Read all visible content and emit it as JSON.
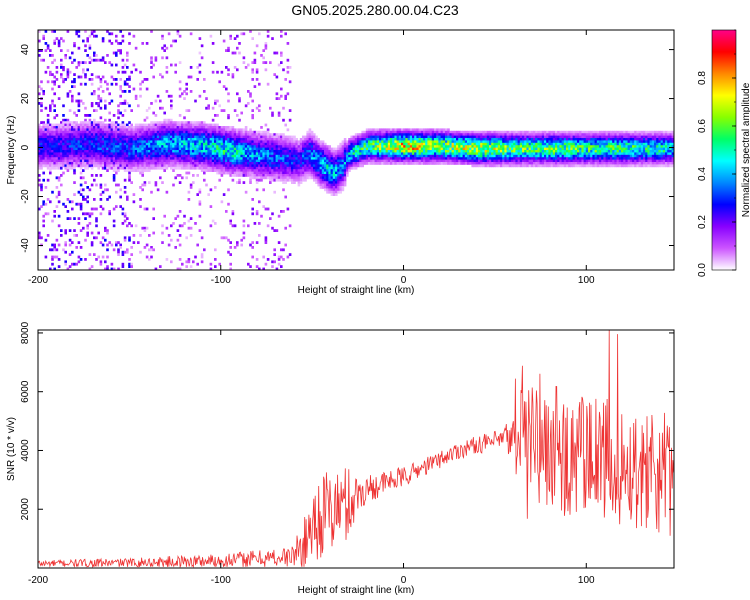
{
  "title": "GN05.2025.280.00.04.C23",
  "chart_data": [
    {
      "type": "heatmap",
      "title": "GN05.2025.280.00.04.C23",
      "xlabel": "Height of straight line (km)",
      "ylabel": "Frequency (Hz)",
      "xlim": [
        -200,
        148
      ],
      "ylim": [
        -50,
        48
      ],
      "xticks": [
        -200,
        -100,
        0,
        100
      ],
      "yticks": [
        -40,
        -20,
        0,
        20,
        40
      ],
      "colorbar": {
        "label": "Normalized spectral amplitude",
        "range": [
          0,
          1
        ],
        "ticks": [
          "0.0",
          "0.2",
          "0.4",
          "0.6",
          "0.8"
        ],
        "tick_values": [
          0.0,
          0.2,
          0.4,
          0.6,
          0.8
        ],
        "colors": [
          "#ffffff",
          "#cc55ff",
          "#8800ff",
          "#0000ff",
          "#0088ff",
          "#00ffff",
          "#00ff66",
          "#88ff00",
          "#ffff00",
          "#ff8800",
          "#ff0000",
          "#ff0088"
        ]
      },
      "ridge": {
        "x": [
          -190,
          -170,
          -150,
          -130,
          -110,
          -95,
          -85,
          -75,
          -65,
          -58,
          -52,
          -46,
          -42,
          -38,
          -34,
          -30,
          -20,
          0,
          20,
          40,
          60,
          80,
          100,
          120,
          140,
          148
        ],
        "freq": [
          1,
          2,
          0,
          2,
          1,
          -1,
          -2,
          -3,
          -4,
          -5,
          -2,
          -6,
          -8,
          -10,
          -7,
          -2,
          1,
          1,
          1,
          0,
          0,
          0,
          0,
          0,
          0,
          0
        ],
        "amplitude": [
          0.3,
          0.35,
          0.35,
          0.45,
          0.5,
          0.55,
          0.45,
          0.4,
          0.35,
          0.3,
          0.4,
          0.45,
          0.5,
          0.45,
          0.4,
          0.5,
          0.6,
          0.85,
          0.7,
          0.75,
          0.65,
          0.65,
          0.6,
          0.6,
          0.55,
          0.5
        ]
      }
    },
    {
      "type": "line",
      "xlabel": "Height of straight line (km)",
      "ylabel": "SNR (10 * v/v)",
      "xlim": [
        -200,
        148
      ],
      "ylim": [
        0,
        8100
      ],
      "xticks": [
        -200,
        -100,
        0,
        100
      ],
      "yticks": [
        2000,
        4000,
        6000,
        8000
      ],
      "color": "#ee3333",
      "series": [
        {
          "name": "SNR",
          "x": [
            -200,
            -150,
            -100,
            -80,
            -62,
            -55,
            -50,
            -45,
            -40,
            -35,
            -30,
            -25,
            -20,
            -10,
            0,
            10,
            20,
            30,
            40,
            50,
            60,
            65,
            70,
            80,
            90,
            100,
            110,
            120,
            130,
            140,
            148
          ],
          "base": [
            150,
            180,
            250,
            320,
            380,
            700,
            1500,
            1800,
            1900,
            2100,
            2200,
            2500,
            2700,
            2900,
            3100,
            3400,
            3700,
            4000,
            4200,
            4300,
            4400,
            4400,
            4300,
            4100,
            3900,
            3700,
            3600,
            3500,
            3400,
            3200,
            3000
          ],
          "noise": [
            120,
            150,
            250,
            300,
            350,
            800,
            1300,
            1500,
            1500,
            1400,
            1300,
            700,
            500,
            400,
            350,
            300,
            300,
            300,
            300,
            350,
            800,
            3000,
            2500,
            2500,
            2300,
            2200,
            2200,
            2100,
            2100,
            2000,
            2000
          ]
        }
      ]
    }
  ]
}
